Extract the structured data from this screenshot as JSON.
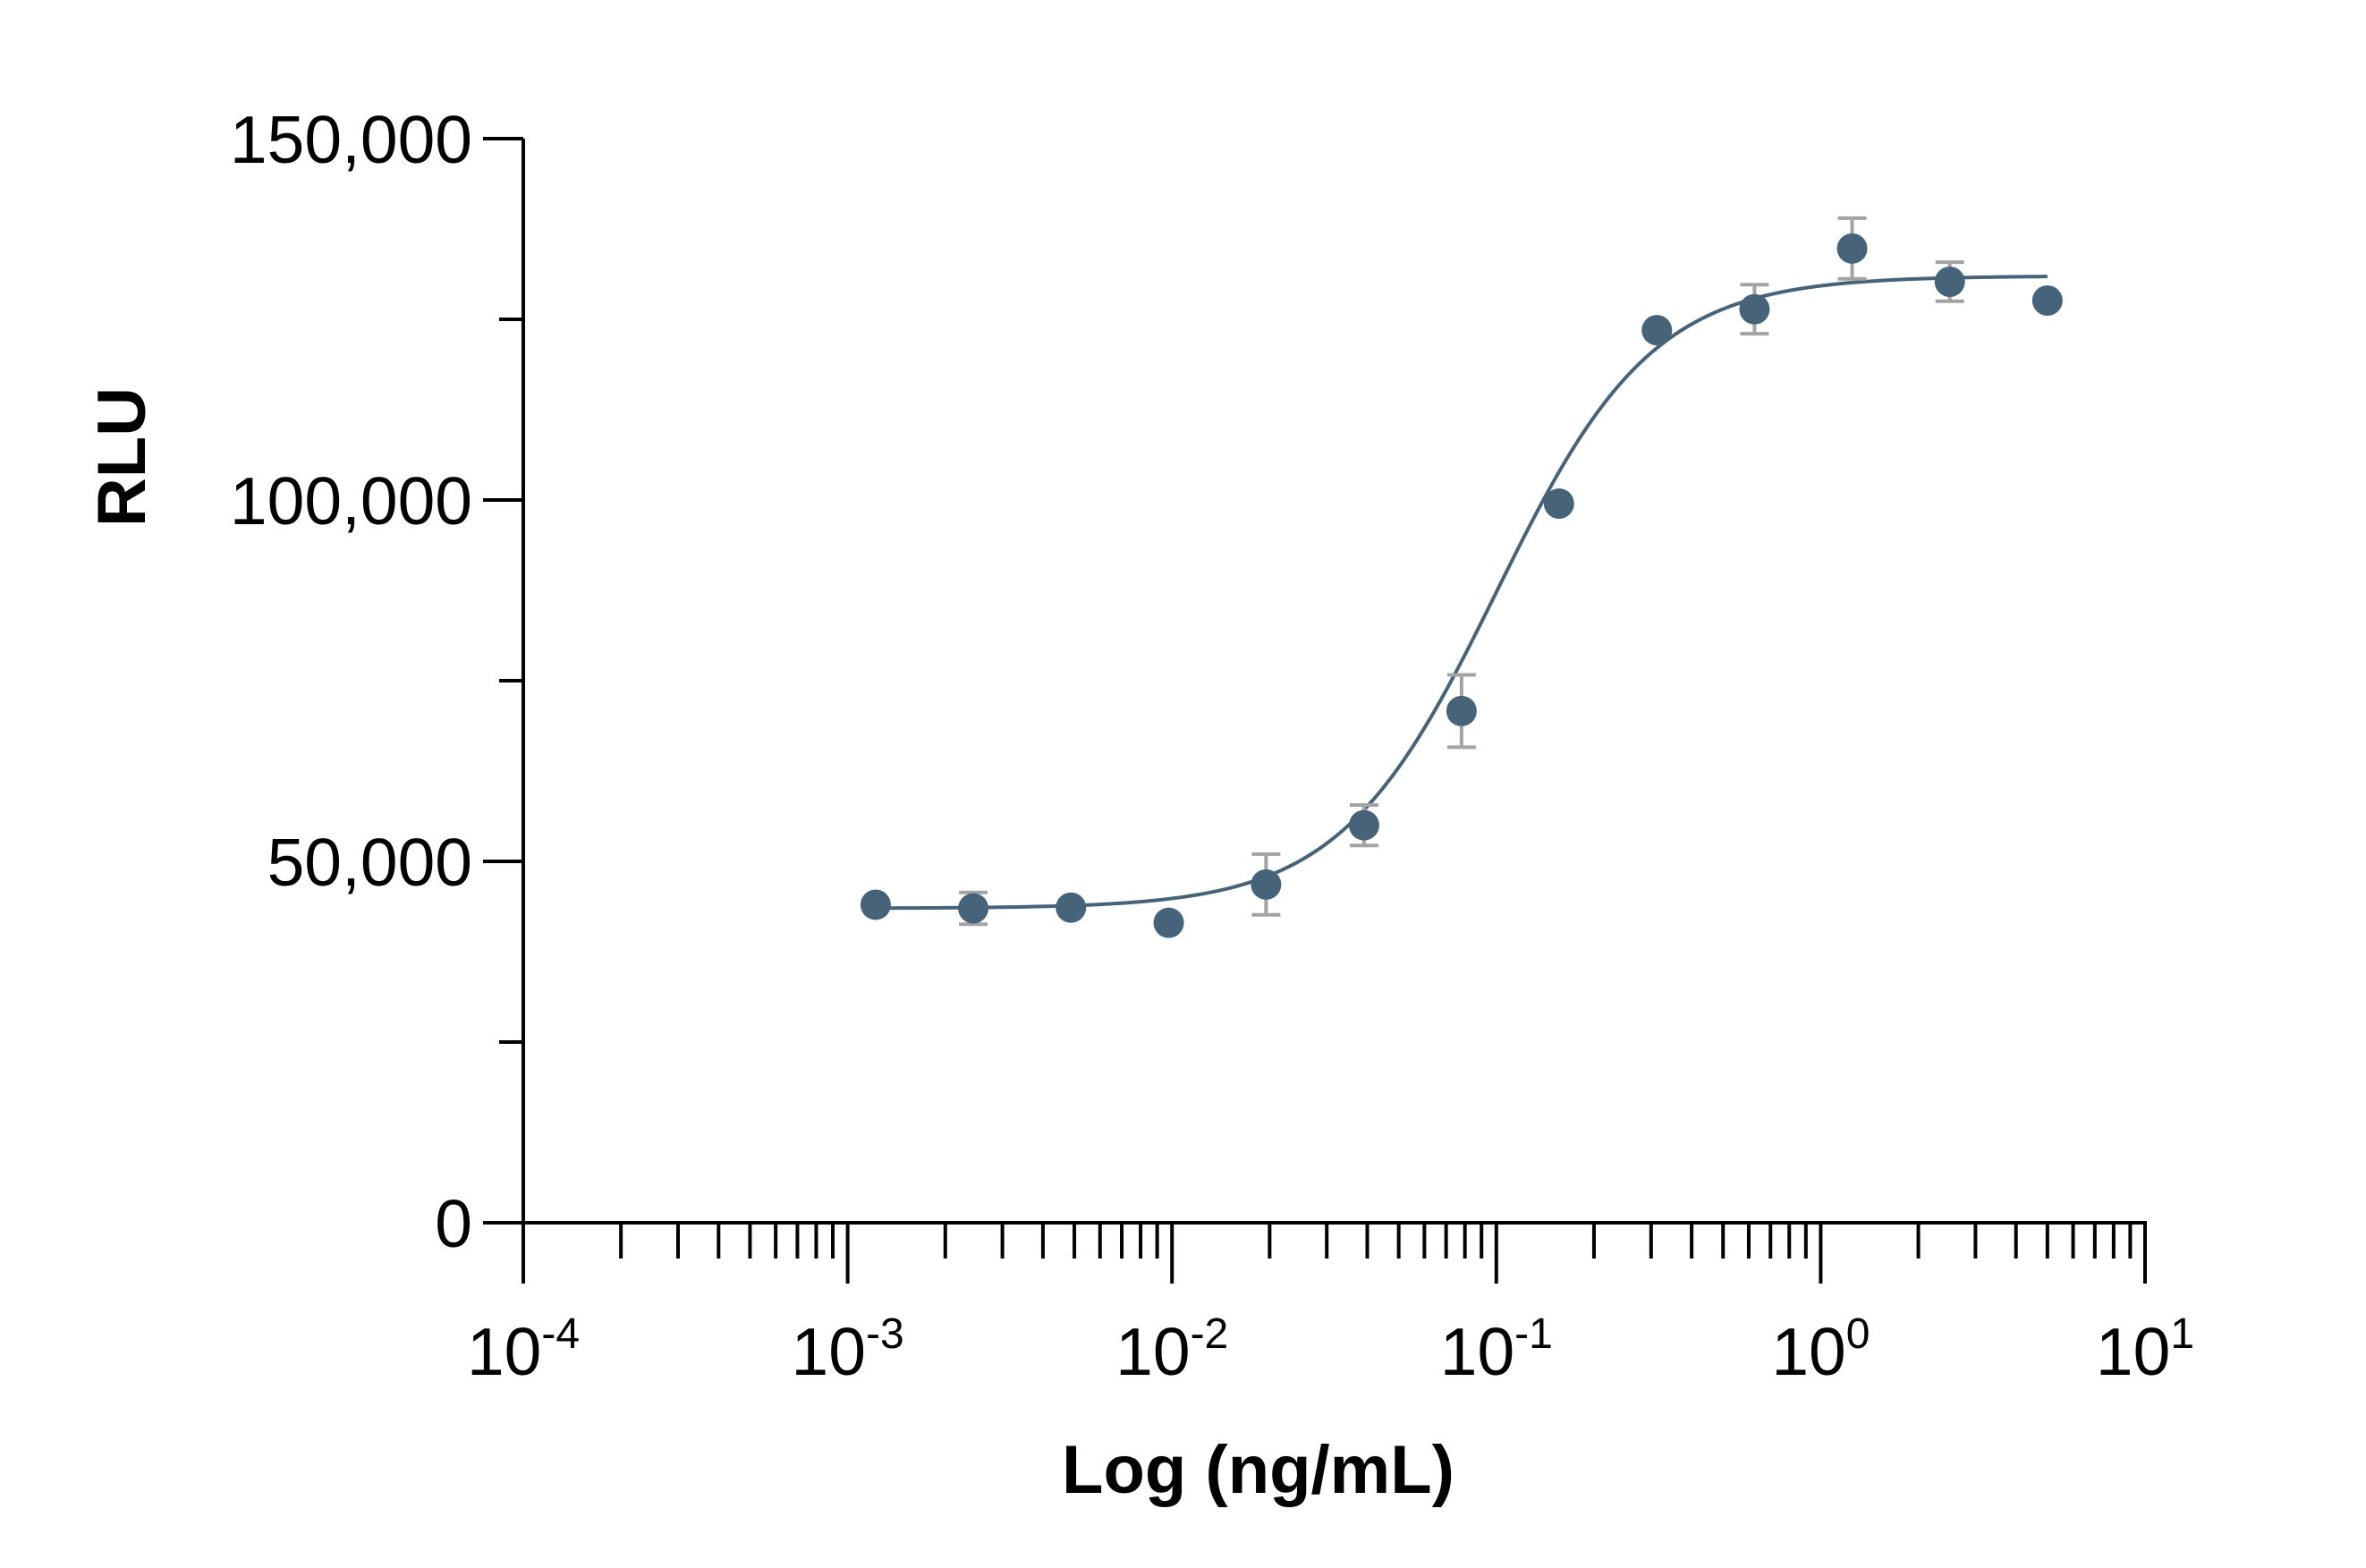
{
  "chart_data": {
    "type": "scatter",
    "title": "",
    "xlabel": "Log (ng/mL)",
    "ylabel": "RLU",
    "x_scale": "log10",
    "xlim": [
      0.0001,
      10
    ],
    "ylim": [
      0,
      150000
    ],
    "x_ticks": [
      {
        "value": 0.0001,
        "base": "10",
        "exp": "-4"
      },
      {
        "value": 0.001,
        "base": "10",
        "exp": "-3"
      },
      {
        "value": 0.01,
        "base": "10",
        "exp": "-2"
      },
      {
        "value": 0.1,
        "base": "10",
        "exp": "-1"
      },
      {
        "value": 1,
        "base": "10",
        "exp": "0"
      },
      {
        "value": 10,
        "base": "10",
        "exp": "1"
      }
    ],
    "y_ticks": [
      {
        "value": 0,
        "label": "0"
      },
      {
        "value": 50000,
        "label": "50,000"
      },
      {
        "value": 100000,
        "label": "100,000"
      },
      {
        "value": 150000,
        "label": "150,000"
      }
    ],
    "y_minor_ticks": [
      25000,
      75000,
      125000
    ],
    "grid": false,
    "legend": "none",
    "colors": {
      "points": "#46637a",
      "curve": "#46637a",
      "error_bars": "#a3a3a3",
      "axes": "#000000"
    },
    "series": [
      {
        "points": [
          {
            "x": 0.00122,
            "y": 44000,
            "err": 0
          },
          {
            "x": 0.00244,
            "y": 43500,
            "err": 2200
          },
          {
            "x": 0.00488,
            "y": 43600,
            "err": 0
          },
          {
            "x": 0.00977,
            "y": 41500,
            "err": 0
          },
          {
            "x": 0.0195,
            "y": 46800,
            "err": 4200
          },
          {
            "x": 0.0391,
            "y": 55000,
            "err": 2800
          },
          {
            "x": 0.0781,
            "y": 70800,
            "err": 5000
          },
          {
            "x": 0.156,
            "y": 99500,
            "err": 0
          },
          {
            "x": 0.3125,
            "y": 123500,
            "err": 0
          },
          {
            "x": 0.625,
            "y": 126400,
            "err": 3400
          },
          {
            "x": 1.25,
            "y": 134800,
            "err": 4200
          },
          {
            "x": 2.5,
            "y": 130200,
            "err": 2700
          },
          {
            "x": 5.0,
            "y": 127600,
            "err": 0
          }
        ],
        "fit": {
          "model": "4PL",
          "bottom": 43500,
          "top": 131000,
          "ec50": 0.1,
          "hill": 1.8,
          "x_range": [
            0.00122,
            5.0
          ]
        }
      }
    ]
  }
}
